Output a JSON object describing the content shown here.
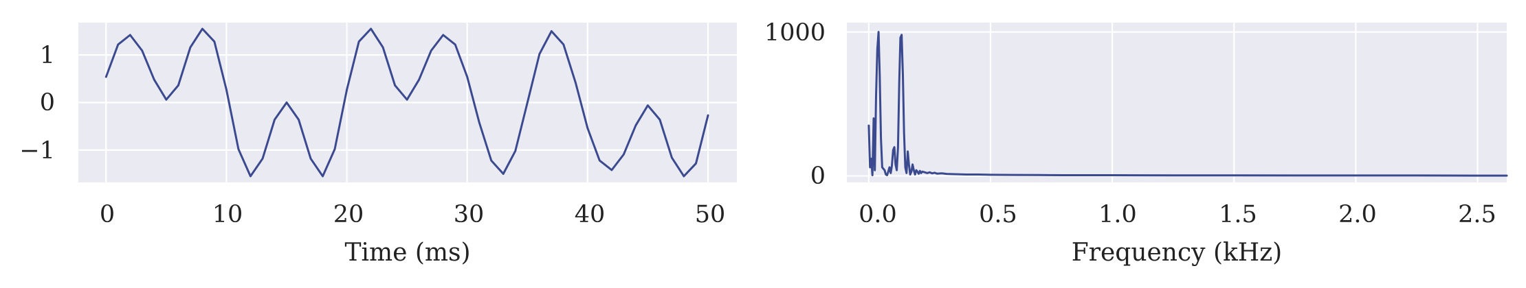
{
  "colors": {
    "series": "#3b4a8f",
    "plot_background": "#eaeaf2",
    "grid": "#ffffff"
  },
  "chart_data": [
    {
      "type": "line",
      "title": "",
      "xlabel": "Time (ms)",
      "ylabel": "",
      "xlim": [
        -2.3,
        52.4
      ],
      "ylim": [
        -1.68,
        1.68
      ],
      "xticks": [
        0,
        10,
        20,
        30,
        40,
        50
      ],
      "xtick_labels": [
        "0",
        "10",
        "20",
        "30",
        "40",
        "50"
      ],
      "yticks": [
        1,
        0,
        -1
      ],
      "ytick_labels": [
        "1",
        "0",
        "−1"
      ],
      "grid": true,
      "series": [
        {
          "x": [
            0,
            1,
            2,
            3,
            4,
            5,
            6,
            7,
            8,
            9,
            10,
            11,
            12,
            13,
            14,
            15,
            16,
            17,
            18,
            19,
            20,
            21,
            22,
            23,
            24,
            25,
            26,
            27,
            28,
            29,
            30,
            31,
            32,
            33,
            34,
            35,
            36,
            37,
            38,
            39,
            40,
            41,
            42,
            43,
            44,
            45,
            46,
            47,
            48,
            49,
            50
          ],
          "values": [
            0.54,
            1.22,
            1.42,
            1.09,
            0.48,
            0.06,
            0.36,
            1.16,
            1.55,
            1.28,
            0.27,
            -0.98,
            -1.55,
            -1.18,
            -0.36,
            0,
            -0.36,
            -1.18,
            -1.55,
            -0.98,
            0.27,
            1.28,
            1.55,
            1.16,
            0.36,
            0.06,
            0.48,
            1.09,
            1.42,
            1.22,
            0.54,
            -0.42,
            -1.22,
            -1.5,
            -1.02,
            0,
            1.02,
            1.5,
            1.22,
            0.42,
            -0.54,
            -1.22,
            -1.42,
            -1.09,
            -0.48,
            -0.06,
            -0.36,
            -1.16,
            -1.55,
            -1.28,
            -0.27
          ]
        }
      ]
    },
    {
      "type": "line",
      "title": "",
      "xlabel": "Frequency (kHz)",
      "ylabel": "",
      "xlim": [
        -0.09,
        2.62
      ],
      "ylim": [
        -45,
        1065
      ],
      "xticks": [
        0,
        0.5,
        1,
        1.5,
        2,
        2.5
      ],
      "xtick_labels": [
        "0.0",
        "0.5",
        "1.0",
        "1.5",
        "2.0",
        "2.5"
      ],
      "yticks": [
        1000,
        0
      ],
      "ytick_labels": [
        "1000",
        "0"
      ],
      "grid": true,
      "series": [
        {
          "x": [
            0,
            0.005,
            0.01,
            0.015,
            0.02,
            0.025,
            0.03,
            0.035,
            0.04,
            0.045,
            0.05,
            0.055,
            0.06,
            0.065,
            0.07,
            0.075,
            0.08,
            0.085,
            0.09,
            0.095,
            0.1,
            0.105,
            0.11,
            0.115,
            0.12,
            0.125,
            0.13,
            0.135,
            0.14,
            0.145,
            0.15,
            0.155,
            0.16,
            0.165,
            0.17,
            0.175,
            0.18,
            0.185,
            0.19,
            0.195,
            0.2,
            0.205,
            0.21,
            0.215,
            0.22,
            0.23,
            0.24,
            0.25,
            0.26,
            0.27,
            0.28,
            0.3,
            0.32,
            0.35,
            0.4,
            0.45,
            0.5,
            0.6,
            0.7,
            0.8,
            1,
            1.25,
            1.5,
            1.75,
            2,
            2.25,
            2.5,
            2.62
          ],
          "values": [
            350,
            60,
            120,
            5,
            400,
            40,
            560,
            880,
            1000,
            700,
            260,
            60,
            50,
            40,
            10,
            5,
            30,
            60,
            20,
            70,
            180,
            200,
            80,
            40,
            200,
            650,
            960,
            980,
            700,
            300,
            60,
            20,
            170,
            80,
            10,
            30,
            80,
            40,
            10,
            40,
            30,
            15,
            35,
            20,
            30,
            25,
            20,
            25,
            18,
            22,
            16,
            18,
            14,
            12,
            10,
            10,
            8,
            7,
            6,
            5,
            5,
            4,
            4,
            3,
            3,
            3,
            2,
            2
          ]
        }
      ]
    }
  ]
}
